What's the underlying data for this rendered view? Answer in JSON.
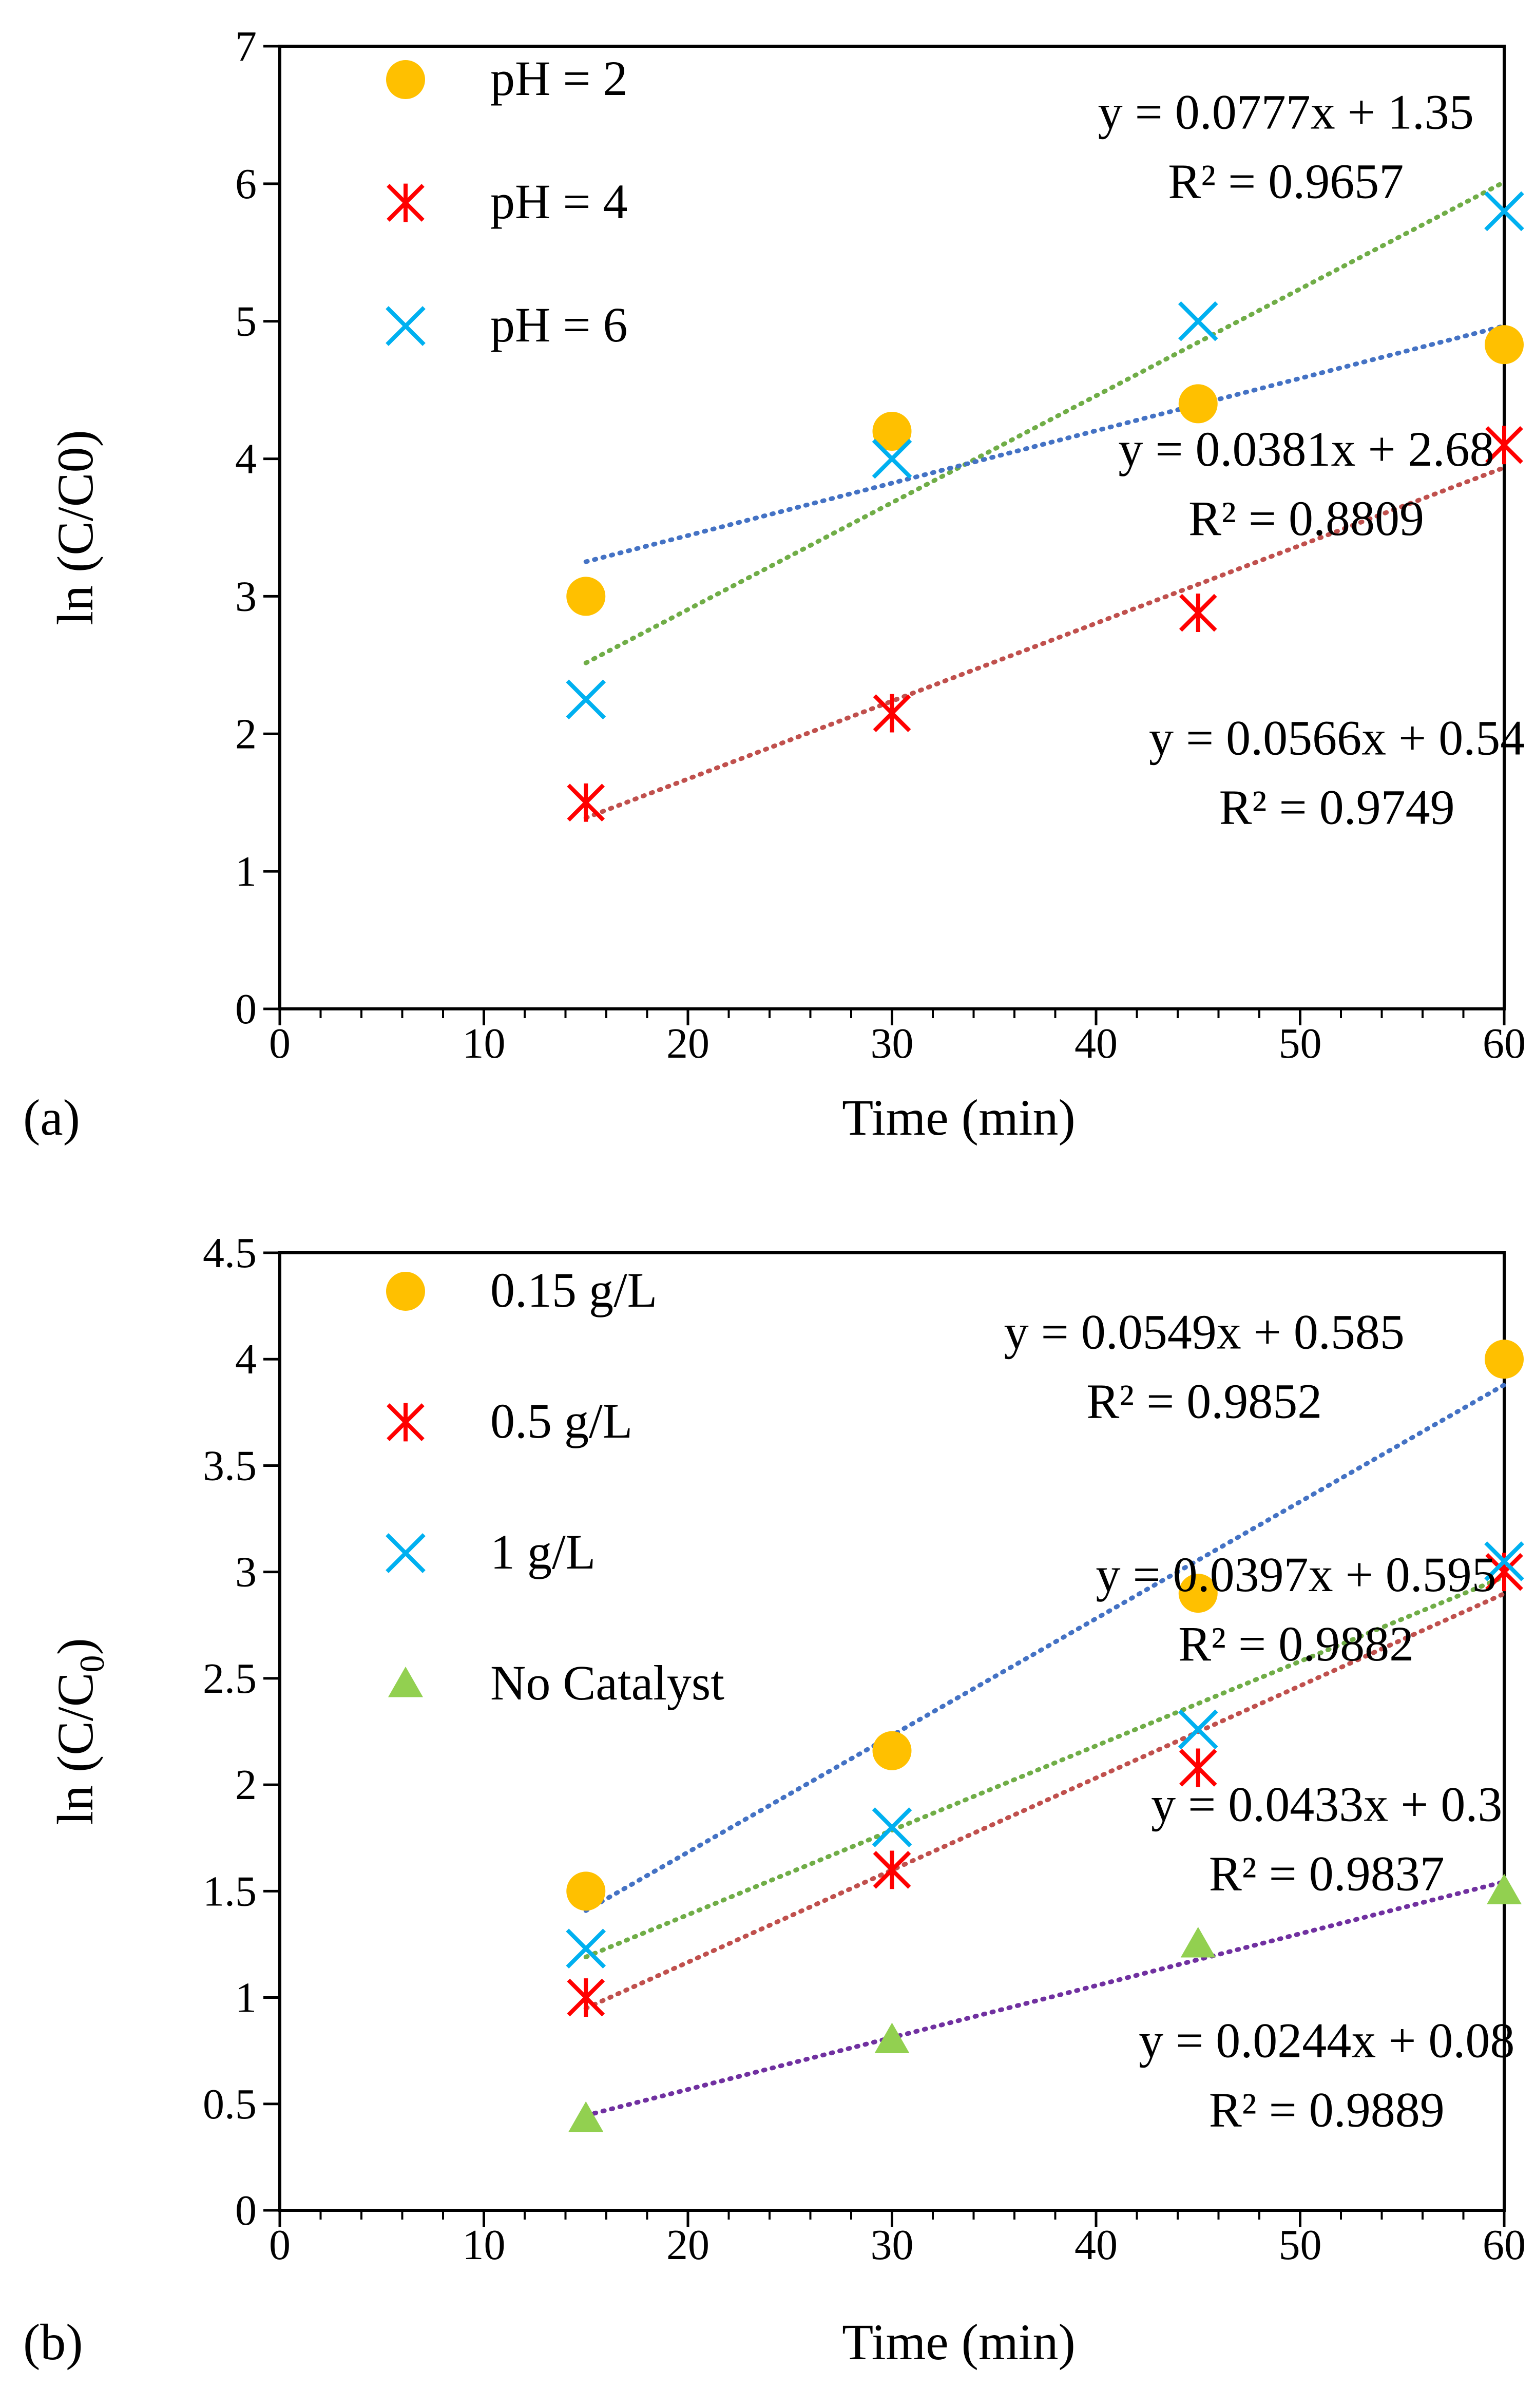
{
  "figure": {
    "panels": [
      {
        "panel_label": "(a)",
        "xlabel": "Time (min)",
        "ylabel": "ln (C/C0)",
        "ylabel_subscript": "",
        "ylabel_suffix": "",
        "x_ticks": [
          0,
          10,
          20,
          30,
          40,
          50,
          60
        ],
        "x_tick_labels": [
          "0",
          "10",
          "20",
          "30",
          "40",
          "50",
          "60"
        ],
        "y_ticks": [
          0,
          1,
          2,
          3,
          4,
          5,
          6,
          7
        ],
        "y_tick_labels": [
          "0",
          "1",
          "2",
          "3",
          "4",
          "5",
          "6",
          "7"
        ]
      },
      {
        "panel_label": "(b)",
        "xlabel": "Time (min)",
        "ylabel": "ln (C/C",
        "ylabel_subscript": "0",
        "ylabel_suffix": ")",
        "x_ticks": [
          0,
          10,
          20,
          30,
          40,
          50,
          60
        ],
        "x_tick_labels": [
          "0",
          "10",
          "20",
          "30",
          "40",
          "50",
          "60"
        ],
        "y_ticks": [
          0,
          0.5,
          1,
          1.5,
          2,
          2.5,
          3,
          3.5,
          4,
          4.5
        ],
        "y_tick_labels": [
          "0",
          "0.5",
          "1",
          "1.5",
          "2",
          "2.5",
          "3",
          "3.5",
          "4",
          "4.5"
        ]
      }
    ]
  },
  "chart_data": [
    {
      "type": "scatter",
      "title": "",
      "panel": "(a)",
      "xlabel": "Time (min)",
      "ylabel": "ln (C/C0)",
      "xlim": [
        0,
        60
      ],
      "ylim": [
        0,
        7
      ],
      "grid": false,
      "legend_position": "top-left",
      "series": [
        {
          "name": "pH = 2",
          "marker": "circle",
          "color": "#FFC000",
          "x": [
            15,
            30,
            45,
            60
          ],
          "y": [
            3.0,
            4.2,
            4.4,
            4.83
          ]
        },
        {
          "name": "pH = 4",
          "marker": "asterisk",
          "color": "#FF0000",
          "x": [
            15,
            30,
            45,
            60
          ],
          "y": [
            1.5,
            2.15,
            2.88,
            4.1
          ]
        },
        {
          "name": "pH = 6",
          "marker": "x",
          "color": "#00B0F0",
          "x": [
            15,
            30,
            45,
            60
          ],
          "y": [
            2.25,
            4.0,
            5.0,
            5.8
          ]
        }
      ],
      "trendlines": [
        {
          "color": "#70AD47",
          "slope": 0.0777,
          "intercept": 1.35,
          "x_range": [
            15,
            60
          ],
          "equation": "y = 0.0777x + 1.35",
          "r2": "R² = 0.9657",
          "label_anchor": [
            41,
            6.4
          ]
        },
        {
          "color": "#4472C4",
          "slope": 0.0381,
          "intercept": 2.68,
          "x_range": [
            15,
            60
          ],
          "equation": "y = 0.0381x + 2.68",
          "r2": "R² = 0.8809",
          "label_anchor": [
            42,
            3.95
          ]
        },
        {
          "color": "#C0504D",
          "slope": 0.0566,
          "intercept": 0.54,
          "x_range": [
            15,
            60
          ],
          "equation": "y = 0.0566x + 0.54",
          "r2": "R² = 0.9749",
          "label_anchor": [
            43.5,
            1.85
          ]
        }
      ]
    },
    {
      "type": "scatter",
      "title": "",
      "panel": "(b)",
      "xlabel": "Time (min)",
      "ylabel": "ln (C/C0)",
      "xlim": [
        0,
        60
      ],
      "ylim": [
        0,
        4.5
      ],
      "grid": false,
      "legend_position": "top-left",
      "series": [
        {
          "name": "0.15 g/L",
          "marker": "circle",
          "color": "#FFC000",
          "x": [
            15,
            30,
            45,
            60
          ],
          "y": [
            1.5,
            2.16,
            2.9,
            4.0
          ]
        },
        {
          "name": "0.5 g/L",
          "marker": "asterisk",
          "color": "#FF0000",
          "x": [
            15,
            30,
            45,
            60
          ],
          "y": [
            1.0,
            1.6,
            2.08,
            3.0
          ]
        },
        {
          "name": "1 g/L",
          "marker": "x",
          "color": "#00B0F0",
          "x": [
            15,
            30,
            45,
            60
          ],
          "y": [
            1.23,
            1.8,
            2.26,
            3.05
          ]
        },
        {
          "name": "No Catalyst",
          "marker": "triangle",
          "color": "#92D050",
          "x": [
            15,
            30,
            45,
            60
          ],
          "y": [
            0.43,
            0.8,
            1.25,
            1.5
          ]
        }
      ],
      "trendlines": [
        {
          "color": "#4472C4",
          "slope": 0.0549,
          "intercept": 0.585,
          "x_range": [
            15,
            60
          ],
          "equation": "y = 0.0549x + 0.585",
          "r2": "R² = 0.9852",
          "label_anchor": [
            37,
            4.05
          ]
        },
        {
          "color": "#70AD47",
          "slope": 0.0397,
          "intercept": 0.595,
          "x_range": [
            15,
            60
          ],
          "equation": "y = 0.0397x + 0.595",
          "r2": "R² = 0.9882",
          "label_anchor": [
            41.5,
            2.91
          ]
        },
        {
          "color": "#C0504D",
          "slope": 0.0433,
          "intercept": 0.3,
          "x_range": [
            15,
            60
          ],
          "equation": "y = 0.0433x + 0.3",
          "r2": "R² = 0.9837",
          "label_anchor": [
            43,
            1.83
          ]
        },
        {
          "color": "#7030A0",
          "slope": 0.0244,
          "intercept": 0.08,
          "x_range": [
            15,
            60
          ],
          "equation": "y = 0.0244x + 0.08",
          "r2": "R² = 0.9889",
          "label_anchor": [
            43,
            0.72
          ]
        }
      ]
    }
  ]
}
